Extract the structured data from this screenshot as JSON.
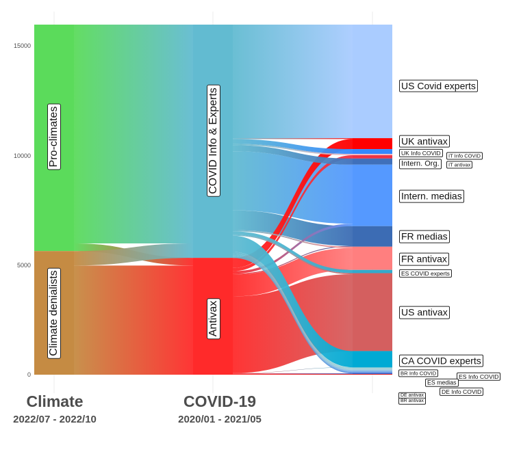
{
  "chart_data": {
    "type": "alluvial",
    "title": "",
    "xlabel": "",
    "ylabel": "",
    "ylim": [
      0,
      16000
    ],
    "y_ticks": [
      0,
      5000,
      10000,
      15000
    ],
    "y_tick_labels": [
      "0",
      "5000",
      "10000",
      "15000"
    ],
    "grid": "vertical",
    "legend": "none",
    "axes": [
      {
        "label": "Climate",
        "period": "2022/07 - 2022/10",
        "strata": [
          {
            "name": "Pro-climates",
            "value": 10350,
            "color": "#5bdb5b"
          },
          {
            "name": "Climate denialists",
            "value": 5650,
            "color": "#c58b43"
          }
        ]
      },
      {
        "label": "COVID-19",
        "period": "2020/01 - 2021/05",
        "strata": [
          {
            "name": "COVID Info & Experts",
            "value": 10660,
            "color": "#62bbd1"
          },
          {
            "name": "Antivax",
            "value": 5340,
            "color": "#ff2a2a"
          }
        ]
      },
      {
        "strata": [
          {
            "name": "US Covid experts",
            "value": 5190,
            "color": "#aaccff"
          },
          {
            "name": "UK antivax",
            "value": 500,
            "color": "#ff0000"
          },
          {
            "name": "UK Info COVID",
            "value": 220,
            "color": "#3388ff"
          },
          {
            "name": "IT Info COVID",
            "value": 60,
            "color": "#f2b8c0"
          },
          {
            "name": "IT antivax",
            "value": 150,
            "color": "#ee3344"
          },
          {
            "name": "Intern. Org.",
            "value": 280,
            "color": "#3f70bb"
          },
          {
            "name": "Intern. medias",
            "value": 2810,
            "color": "#5599ff"
          },
          {
            "name": "FR medias",
            "value": 940,
            "color": "#3c6cb4"
          },
          {
            "name": "FR antivax",
            "value": 1060,
            "color": "#ff7f7f"
          },
          {
            "name": "ES COVID experts",
            "value": 150,
            "color": "#33aacc"
          },
          {
            "name": "US antivax",
            "value": 3560,
            "color": "#d45f5f"
          },
          {
            "name": "CA COVID experts",
            "value": 750,
            "color": "#00aad4"
          },
          {
            "name": "BR Info COVID",
            "value": 90,
            "color": "#a6d2d8"
          },
          {
            "name": "ES Info COVID",
            "value": 60,
            "color": "#9cc8e0"
          },
          {
            "name": "ES medias",
            "value": 60,
            "color": "#7fb0e8"
          },
          {
            "name": "DE Info COVID",
            "value": 60,
            "color": "#5a8fe0"
          },
          {
            "name": "DE antivax",
            "value": 30,
            "color": "#3050c0"
          },
          {
            "name": "BR antivax",
            "value": 30,
            "color": "#e02020"
          }
        ]
      }
    ],
    "flows": [
      {
        "axis": 0,
        "from": 0,
        "to": 0,
        "value": 10000
      },
      {
        "axis": 0,
        "from": 1,
        "to": 1,
        "value": 4990
      },
      {
        "axis": 0,
        "from": 0,
        "to": 1,
        "value": 350
      },
      {
        "axis": 0,
        "from": 1,
        "to": 0,
        "value": 660
      },
      {
        "axis": 1,
        "from": 0,
        "to": 0,
        "value": 5190
      },
      {
        "axis": 1,
        "from": 0,
        "to": 6,
        "value": 2700
      },
      {
        "axis": 1,
        "from": 0,
        "to": 7,
        "value": 900
      },
      {
        "axis": 1,
        "from": 1,
        "to": 10,
        "value": 3510
      },
      {
        "axis": 1,
        "from": 1,
        "to": 8,
        "value": 1000
      },
      {
        "axis": 1,
        "from": 1,
        "to": 1,
        "value": 460
      },
      {
        "axis": 1,
        "from": 1,
        "to": 4,
        "value": 150
      },
      {
        "axis": 1,
        "from": 1,
        "to": 6,
        "value": 110
      },
      {
        "axis": 1,
        "from": 1,
        "to": 7,
        "value": 40
      },
      {
        "axis": 1,
        "from": 1,
        "to": 11,
        "value": 10
      },
      {
        "axis": 1,
        "from": 1,
        "to": 16,
        "value": 30
      },
      {
        "axis": 1,
        "from": 1,
        "to": 17,
        "value": 30
      },
      {
        "axis": 1,
        "from": 0,
        "to": 1,
        "value": 40
      },
      {
        "axis": 1,
        "from": 0,
        "to": 2,
        "value": 220
      },
      {
        "axis": 1,
        "from": 0,
        "to": 3,
        "value": 60
      },
      {
        "axis": 1,
        "from": 0,
        "to": 5,
        "value": 280
      },
      {
        "axis": 1,
        "from": 0,
        "to": 8,
        "value": 60
      },
      {
        "axis": 1,
        "from": 0,
        "to": 9,
        "value": 150
      },
      {
        "axis": 1,
        "from": 0,
        "to": 10,
        "value": 50
      },
      {
        "axis": 1,
        "from": 0,
        "to": 11,
        "value": 740
      },
      {
        "axis": 1,
        "from": 0,
        "to": 12,
        "value": 90
      },
      {
        "axis": 1,
        "from": 0,
        "to": 13,
        "value": 60
      },
      {
        "axis": 1,
        "from": 0,
        "to": 14,
        "value": 60
      },
      {
        "axis": 1,
        "from": 0,
        "to": 15,
        "value": 60
      }
    ]
  }
}
